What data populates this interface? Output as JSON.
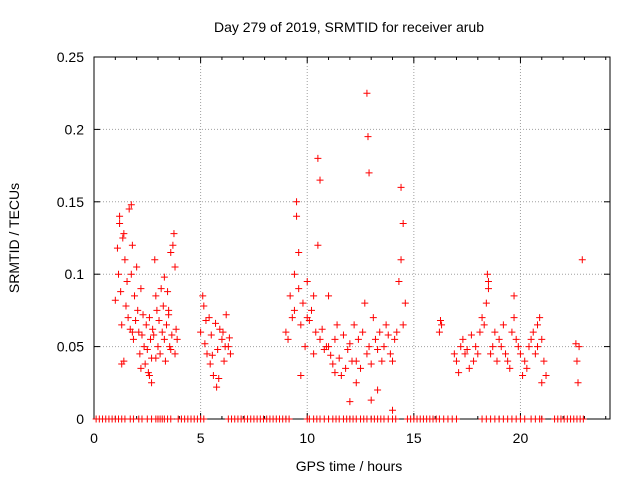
{
  "chart_data": {
    "type": "scatter",
    "title": "Day 279 of 2019, SRMTID for receiver arub",
    "xlabel": "GPS time / hours",
    "ylabel": "SRMTID / TECUs",
    "xlim": [
      0,
      24.2
    ],
    "ylim": [
      0,
      0.25
    ],
    "grid": true,
    "legend": "none",
    "marker": "+",
    "color": "#ff0000",
    "x_ticks": [
      0,
      5,
      10,
      15,
      20
    ],
    "x_tick_labels": [
      "0",
      "5",
      "10",
      "15",
      "20"
    ],
    "y_ticks": [
      0,
      0.05,
      0.1,
      0.15,
      0.2,
      0.25
    ],
    "y_tick_labels": [
      "0",
      "0.05",
      "0.1",
      "0.15",
      "0.2",
      "0.25"
    ],
    "series": [
      {
        "name": "SRMTID",
        "x": [
          1.0,
          1.1,
          1.15,
          1.2,
          1.25,
          1.3,
          1.35,
          1.4,
          1.45,
          1.5,
          1.55,
          1.6,
          1.65,
          1.7,
          1.75,
          1.8,
          1.85,
          1.9,
          1.95,
          2.0,
          2.05,
          2.1,
          2.15,
          2.2,
          2.25,
          2.3,
          2.35,
          2.4,
          2.45,
          2.5,
          2.55,
          2.6,
          2.65,
          2.7,
          2.75,
          2.8,
          2.85,
          2.9,
          2.95,
          3.0,
          3.05,
          3.1,
          3.15,
          3.2,
          3.25,
          3.3,
          3.35,
          3.4,
          3.45,
          3.5,
          3.55,
          3.6,
          3.65,
          3.7,
          3.75,
          3.8,
          3.85,
          3.9,
          1.2,
          1.3,
          1.75,
          1.8,
          2.6,
          2.7,
          3.3,
          3.5,
          3.8,
          1.4,
          2.2,
          2.9,
          3.6,
          5.0,
          5.1,
          5.2,
          5.3,
          5.4,
          5.5,
          5.6,
          5.7,
          5.8,
          5.9,
          6.0,
          6.1,
          6.2,
          6.3,
          6.4,
          5.15,
          5.45,
          5.75,
          6.05,
          6.35,
          5.25,
          5.55,
          5.85,
          6.15,
          9.0,
          9.1,
          9.2,
          9.3,
          9.4,
          9.5,
          9.6,
          9.7,
          9.8,
          9.9,
          10.0,
          10.1,
          10.2,
          10.3,
          10.4,
          10.5,
          10.6,
          10.7,
          10.8,
          10.9,
          11.0,
          11.1,
          11.2,
          11.3,
          11.4,
          11.5,
          11.6,
          11.7,
          11.8,
          11.9,
          12.0,
          12.1,
          12.2,
          12.3,
          12.4,
          12.5,
          12.6,
          12.7,
          12.8,
          12.9,
          13.0,
          13.1,
          13.2,
          13.3,
          13.4,
          13.5,
          13.6,
          13.7,
          13.8,
          13.9,
          14.0,
          14.1,
          14.2,
          14.3,
          14.4,
          14.5,
          14.6,
          9.5,
          9.6,
          10.5,
          10.6,
          12.8,
          12.85,
          12.9,
          14.4,
          14.5,
          9.4,
          10.0,
          11.0,
          12.0,
          13.0,
          14.0,
          9.7,
          10.3,
          11.3,
          12.3,
          13.3,
          16.2,
          16.25,
          16.3,
          16.9,
          17.0,
          17.1,
          17.2,
          17.3,
          17.4,
          17.5,
          17.6,
          17.7,
          17.8,
          17.9,
          18.0,
          18.1,
          18.2,
          18.3,
          18.4,
          18.5,
          18.6,
          18.7,
          18.8,
          18.9,
          19.0,
          19.1,
          19.2,
          19.3,
          19.4,
          19.5,
          19.6,
          19.7,
          19.8,
          19.9,
          20.0,
          20.1,
          20.2,
          20.3,
          20.4,
          20.5,
          20.6,
          20.7,
          20.8,
          20.9,
          21.0,
          21.1,
          21.2,
          18.45,
          18.5,
          19.7,
          20.8,
          21.0,
          22.6,
          22.65,
          22.7,
          22.75,
          22.9
        ],
        "y": [
          0.082,
          0.118,
          0.1,
          0.135,
          0.088,
          0.065,
          0.125,
          0.04,
          0.11,
          0.078,
          0.095,
          0.07,
          0.145,
          0.062,
          0.1,
          0.12,
          0.055,
          0.085,
          0.068,
          0.105,
          0.075,
          0.06,
          0.045,
          0.09,
          0.058,
          0.072,
          0.05,
          0.038,
          0.065,
          0.048,
          0.032,
          0.07,
          0.055,
          0.042,
          0.062,
          0.058,
          0.11,
          0.085,
          0.075,
          0.05,
          0.068,
          0.045,
          0.09,
          0.06,
          0.078,
          0.055,
          0.04,
          0.065,
          0.088,
          0.072,
          0.05,
          0.048,
          0.058,
          0.12,
          0.128,
          0.105,
          0.062,
          0.055,
          0.14,
          0.038,
          0.148,
          0.06,
          0.03,
          0.025,
          0.098,
          0.075,
          0.045,
          0.128,
          0.035,
          0.042,
          0.115,
          0.06,
          0.085,
          0.052,
          0.045,
          0.07,
          0.058,
          0.03,
          0.066,
          0.048,
          0.062,
          0.055,
          0.04,
          0.072,
          0.05,
          0.045,
          0.078,
          0.038,
          0.022,
          0.06,
          0.056,
          0.068,
          0.044,
          0.028,
          0.05,
          0.06,
          0.055,
          0.085,
          0.07,
          0.1,
          0.14,
          0.115,
          0.065,
          0.08,
          0.05,
          0.095,
          0.068,
          0.075,
          0.045,
          0.06,
          0.12,
          0.055,
          0.062,
          0.048,
          0.05,
          0.085,
          0.044,
          0.038,
          0.055,
          0.065,
          0.042,
          0.03,
          0.058,
          0.035,
          0.048,
          0.052,
          0.04,
          0.065,
          0.04,
          0.055,
          0.035,
          0.06,
          0.08,
          0.045,
          0.05,
          0.038,
          0.07,
          0.055,
          0.048,
          0.06,
          0.04,
          0.05,
          0.065,
          0.058,
          0.045,
          0.04,
          0.055,
          0.06,
          0.095,
          0.11,
          0.065,
          0.08,
          0.15,
          0.09,
          0.18,
          0.165,
          0.225,
          0.195,
          0.17,
          0.16,
          0.135,
          0.075,
          0.07,
          0.05,
          0.012,
          0.013,
          0.006,
          0.03,
          0.085,
          0.032,
          0.025,
          0.02,
          0.06,
          0.068,
          0.065,
          0.045,
          0.04,
          0.032,
          0.05,
          0.055,
          0.045,
          0.048,
          0.035,
          0.058,
          0.04,
          0.05,
          0.045,
          0.06,
          0.07,
          0.065,
          0.08,
          0.09,
          0.045,
          0.05,
          0.06,
          0.04,
          0.055,
          0.05,
          0.065,
          0.045,
          0.04,
          0.035,
          0.06,
          0.07,
          0.055,
          0.05,
          0.045,
          0.03,
          0.04,
          0.035,
          0.05,
          0.055,
          0.06,
          0.045,
          0.05,
          0.07,
          0.055,
          0.04,
          0.03,
          0.1,
          0.095,
          0.085,
          0.065,
          0.025,
          0.052,
          0.04,
          0.025,
          0.05,
          0.11
        ]
      }
    ],
    "baseline_marks": {
      "y": 0,
      "x": [
        0.1,
        0.25,
        0.4,
        0.55,
        0.7,
        0.85,
        1.0,
        1.15,
        1.3,
        1.45,
        1.7,
        1.85,
        2.1,
        2.25,
        2.5,
        2.7,
        2.9,
        3.0,
        3.1,
        3.2,
        3.3,
        3.45,
        3.6,
        3.95,
        4.1,
        4.25,
        4.4,
        4.55,
        4.7,
        4.85,
        5.0,
        5.15,
        6.3,
        6.45,
        6.6,
        6.75,
        6.9,
        7.05,
        7.2,
        7.35,
        7.5,
        7.65,
        7.8,
        7.95,
        8.1,
        8.25,
        8.4,
        8.55,
        8.7,
        8.85,
        9.0,
        9.15,
        10.0,
        10.1,
        10.3,
        10.45,
        10.6,
        10.8,
        11.0,
        11.2,
        11.35,
        11.5,
        11.7,
        11.85,
        12.0,
        12.15,
        12.3,
        12.5,
        12.65,
        12.8,
        13.0,
        13.15,
        13.3,
        13.45,
        13.6,
        13.8,
        14.0,
        14.15,
        14.7,
        14.85,
        15.0,
        15.15,
        15.3,
        15.45,
        15.6,
        15.75,
        15.9,
        16.05,
        16.2,
        16.4,
        16.6,
        16.8,
        17.0,
        18.2,
        18.4,
        18.6,
        18.8,
        19.0,
        19.2,
        19.4,
        19.6,
        19.8,
        20.0,
        20.2,
        20.5,
        20.7,
        20.9,
        21.0,
        21.6,
        21.75,
        21.9,
        22.05,
        22.2,
        22.35,
        22.5,
        22.65,
        22.8,
        22.95
      ]
    }
  }
}
